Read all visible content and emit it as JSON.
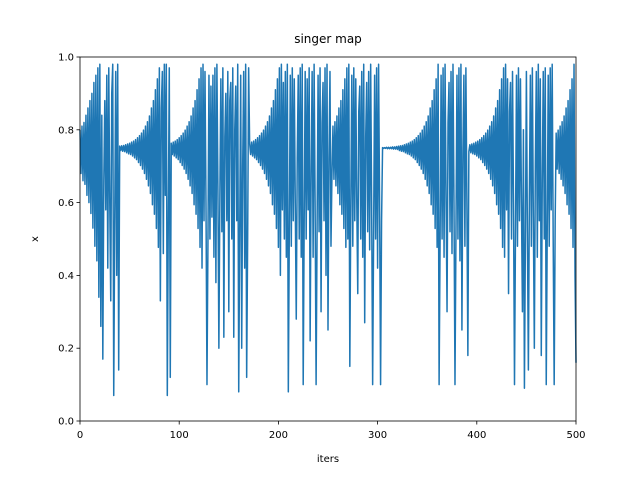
{
  "chart_data": {
    "type": "line",
    "title": "singer map",
    "x_label": "iters",
    "y_label": "x",
    "color": "#1f77b4",
    "grid": false,
    "xlim": [
      0,
      500
    ],
    "xticks": [
      0,
      100,
      200,
      300,
      400,
      500
    ],
    "ylim": [
      0,
      1
    ],
    "yticks": [
      {
        "value": 0,
        "label": "0.0"
      },
      0.2,
      0.4,
      0.6,
      0.8,
      {
        "value": 1,
        "label": "1.0"
      }
    ],
    "values": [
      0.8,
      0.68,
      0.81,
      0.66,
      0.82,
      0.65,
      0.84,
      0.62,
      0.86,
      0.6,
      0.88,
      0.57,
      0.9,
      0.53,
      0.93,
      0.48,
      0.95,
      0.44,
      0.97,
      0.34,
      0.98,
      0.26,
      0.84,
      0.17,
      0.66,
      0.88,
      0.58,
      0.95,
      0.42,
      0.97,
      0.6,
      0.33,
      0.9,
      0.98,
      0.07,
      0.55,
      0.96,
      0.4,
      0.98,
      0.14,
      0.755,
      0.743,
      0.756,
      0.741,
      0.757,
      0.74,
      0.759,
      0.737,
      0.761,
      0.734,
      0.763,
      0.732,
      0.766,
      0.728,
      0.769,
      0.723,
      0.773,
      0.718,
      0.778,
      0.71,
      0.784,
      0.702,
      0.791,
      0.692,
      0.799,
      0.68,
      0.81,
      0.664,
      0.822,
      0.646,
      0.838,
      0.625,
      0.86,
      0.594,
      0.88,
      0.568,
      0.91,
      0.529,
      0.94,
      0.477,
      0.97,
      0.33,
      0.86,
      0.96,
      0.46,
      0.98,
      0.62,
      0.98,
      0.07,
      0.55,
      0.97,
      0.12,
      0.763,
      0.732,
      0.766,
      0.728,
      0.769,
      0.723,
      0.773,
      0.718,
      0.778,
      0.71,
      0.784,
      0.702,
      0.791,
      0.692,
      0.799,
      0.68,
      0.81,
      0.664,
      0.822,
      0.646,
      0.838,
      0.625,
      0.86,
      0.594,
      0.88,
      0.568,
      0.91,
      0.529,
      0.94,
      0.477,
      0.97,
      0.42,
      0.98,
      0.55,
      0.96,
      0.6,
      0.1,
      0.5,
      0.95,
      0.5,
      0.92,
      0.56,
      0.95,
      0.45,
      0.97,
      0.38,
      0.98,
      0.65,
      0.2,
      0.62,
      0.94,
      0.52,
      0.97,
      0.23,
      0.78,
      0.9,
      0.55,
      0.96,
      0.3,
      0.88,
      0.93,
      0.5,
      0.97,
      0.23,
      0.8,
      0.92,
      0.55,
      0.98,
      0.08,
      0.52,
      0.95,
      0.2,
      0.7,
      0.96,
      0.42,
      0.98,
      0.12,
      0.5,
      0.97,
      0.763,
      0.732,
      0.766,
      0.728,
      0.769,
      0.723,
      0.773,
      0.718,
      0.778,
      0.71,
      0.784,
      0.702,
      0.791,
      0.692,
      0.799,
      0.68,
      0.81,
      0.664,
      0.822,
      0.646,
      0.838,
      0.625,
      0.86,
      0.594,
      0.88,
      0.568,
      0.91,
      0.529,
      0.94,
      0.477,
      0.97,
      0.4,
      0.98,
      0.58,
      0.93,
      0.5,
      0.96,
      0.45,
      0.98,
      0.08,
      0.52,
      0.95,
      0.48,
      0.97,
      0.55,
      0.94,
      0.6,
      0.28,
      0.72,
      0.95,
      0.5,
      0.97,
      0.45,
      0.98,
      0.1,
      0.55,
      0.96,
      0.5,
      0.94,
      0.58,
      0.97,
      0.22,
      0.68,
      0.96,
      0.45,
      0.98,
      0.6,
      0.1,
      0.53,
      0.95,
      0.52,
      0.97,
      0.3,
      0.82,
      0.93,
      0.55,
      0.97,
      0.4,
      0.98,
      0.25,
      0.72,
      0.96,
      0.48,
      0.68,
      0.81,
      0.664,
      0.822,
      0.646,
      0.838,
      0.625,
      0.86,
      0.594,
      0.88,
      0.568,
      0.91,
      0.529,
      0.94,
      0.477,
      0.97,
      0.5,
      0.98,
      0.15,
      0.6,
      0.95,
      0.48,
      0.97,
      0.55,
      0.94,
      0.6,
      0.35,
      0.85,
      0.92,
      0.5,
      0.96,
      0.45,
      0.98,
      0.27,
      0.78,
      0.93,
      0.52,
      0.96,
      0.47,
      0.98,
      0.6,
      0.1,
      0.52,
      0.95,
      0.5,
      0.97,
      0.42,
      0.98,
      0.6,
      0.1,
      0.55,
      0.751,
      0.749,
      0.751,
      0.749,
      0.752,
      0.748,
      0.752,
      0.748,
      0.752,
      0.748,
      0.753,
      0.747,
      0.753,
      0.747,
      0.754,
      0.746,
      0.755,
      0.743,
      0.756,
      0.741,
      0.757,
      0.74,
      0.759,
      0.737,
      0.761,
      0.734,
      0.763,
      0.732,
      0.766,
      0.728,
      0.769,
      0.723,
      0.773,
      0.718,
      0.778,
      0.71,
      0.784,
      0.702,
      0.791,
      0.692,
      0.799,
      0.68,
      0.81,
      0.664,
      0.822,
      0.646,
      0.838,
      0.625,
      0.86,
      0.594,
      0.88,
      0.568,
      0.91,
      0.529,
      0.94,
      0.477,
      0.98,
      0.1,
      0.5,
      0.95,
      0.5,
      0.97,
      0.45,
      0.98,
      0.62,
      0.3,
      0.82,
      0.93,
      0.52,
      0.96,
      0.46,
      0.98,
      0.6,
      0.1,
      0.52,
      0.95,
      0.5,
      0.97,
      0.44,
      0.98,
      0.25,
      0.74,
      0.95,
      0.48,
      0.97,
      0.6,
      0.18,
      0.74,
      0.759,
      0.737,
      0.761,
      0.734,
      0.763,
      0.732,
      0.766,
      0.728,
      0.769,
      0.723,
      0.773,
      0.718,
      0.778,
      0.71,
      0.784,
      0.702,
      0.791,
      0.692,
      0.799,
      0.68,
      0.81,
      0.664,
      0.822,
      0.646,
      0.838,
      0.625,
      0.86,
      0.594,
      0.88,
      0.568,
      0.91,
      0.529,
      0.94,
      0.477,
      0.97,
      0.45,
      0.98,
      0.58,
      0.94,
      0.35,
      0.85,
      0.93,
      0.5,
      0.96,
      0.6,
      0.1,
      0.52,
      0.95,
      0.48,
      0.97,
      0.55,
      0.94,
      0.6,
      0.3,
      0.8,
      0.09,
      0.5,
      0.96,
      0.52,
      0.14,
      0.62,
      0.95,
      0.48,
      0.97,
      0.56,
      0.2,
      0.7,
      0.96,
      0.45,
      0.98,
      0.55,
      0.94,
      0.18,
      0.66,
      0.96,
      0.5,
      0.97,
      0.1,
      0.52,
      0.95,
      0.48,
      0.97,
      0.58,
      0.98,
      0.5,
      0.1,
      0.55,
      0.791,
      0.692,
      0.799,
      0.68,
      0.81,
      0.664,
      0.822,
      0.646,
      0.838,
      0.625,
      0.86,
      0.594,
      0.88,
      0.568,
      0.91,
      0.529,
      0.94,
      0.477,
      0.98,
      0.4,
      0.16
    ]
  }
}
